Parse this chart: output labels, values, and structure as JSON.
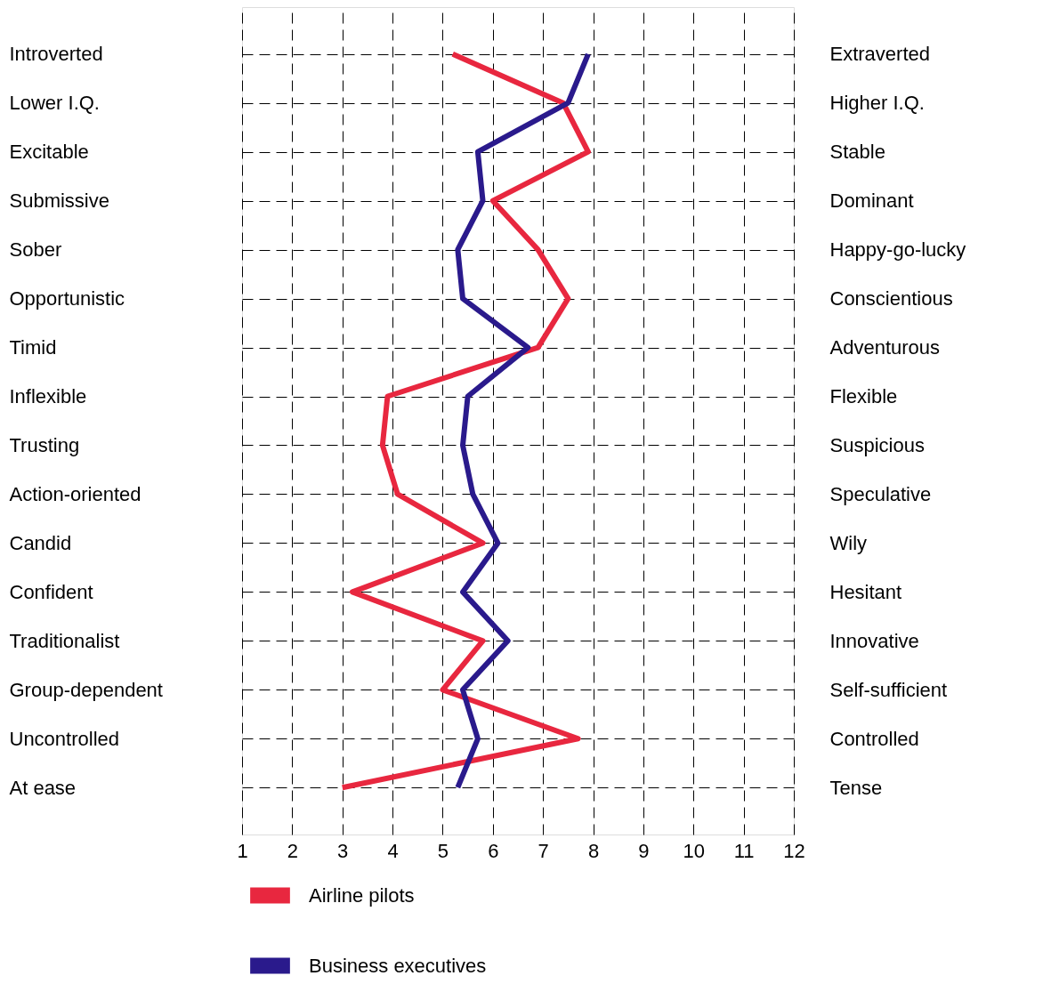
{
  "chart_data": {
    "type": "line",
    "orientation": "horizontal",
    "categories": [
      "Introverted",
      "Lower I.Q.",
      "Excitable",
      "Submissive",
      "Sober",
      "Opportunistic",
      "Timid",
      "Inflexible",
      "Trusting",
      "Action-oriented",
      "Candid",
      "Confident",
      "Traditionalist",
      "Group-dependent",
      "Uncontrolled",
      "At ease"
    ],
    "y2_categories": [
      "Extraverted",
      "Higher I.Q.",
      "Stable",
      "Dominant",
      "Happy-go-lucky",
      "Conscientious",
      "Adventurous",
      "Flexible",
      "Suspicious",
      "Speculative",
      "Wily",
      "Hesitant",
      "Innovative",
      "Self-sufficient",
      "Controlled",
      "Tense"
    ],
    "xlim": [
      1,
      12
    ],
    "xticks": [
      1,
      2,
      3,
      4,
      5,
      6,
      7,
      8,
      9,
      10,
      11,
      12
    ],
    "grid": true,
    "legend": "bottom",
    "line_style": "solid",
    "series": [
      {
        "name": "Airline pilots",
        "color": "#e8273f",
        "values": [
          5.2,
          7.4,
          7.9,
          6.0,
          6.9,
          7.5,
          6.9,
          3.9,
          3.8,
          4.1,
          5.8,
          3.2,
          5.8,
          5.0,
          7.7,
          3.0
        ]
      },
      {
        "name": "Business executives",
        "color": "#2a1a8c",
        "values": [
          7.9,
          7.5,
          5.7,
          5.8,
          5.3,
          5.4,
          6.7,
          5.5,
          5.4,
          5.6,
          6.1,
          5.4,
          6.3,
          5.4,
          5.7,
          5.3
        ]
      }
    ]
  }
}
